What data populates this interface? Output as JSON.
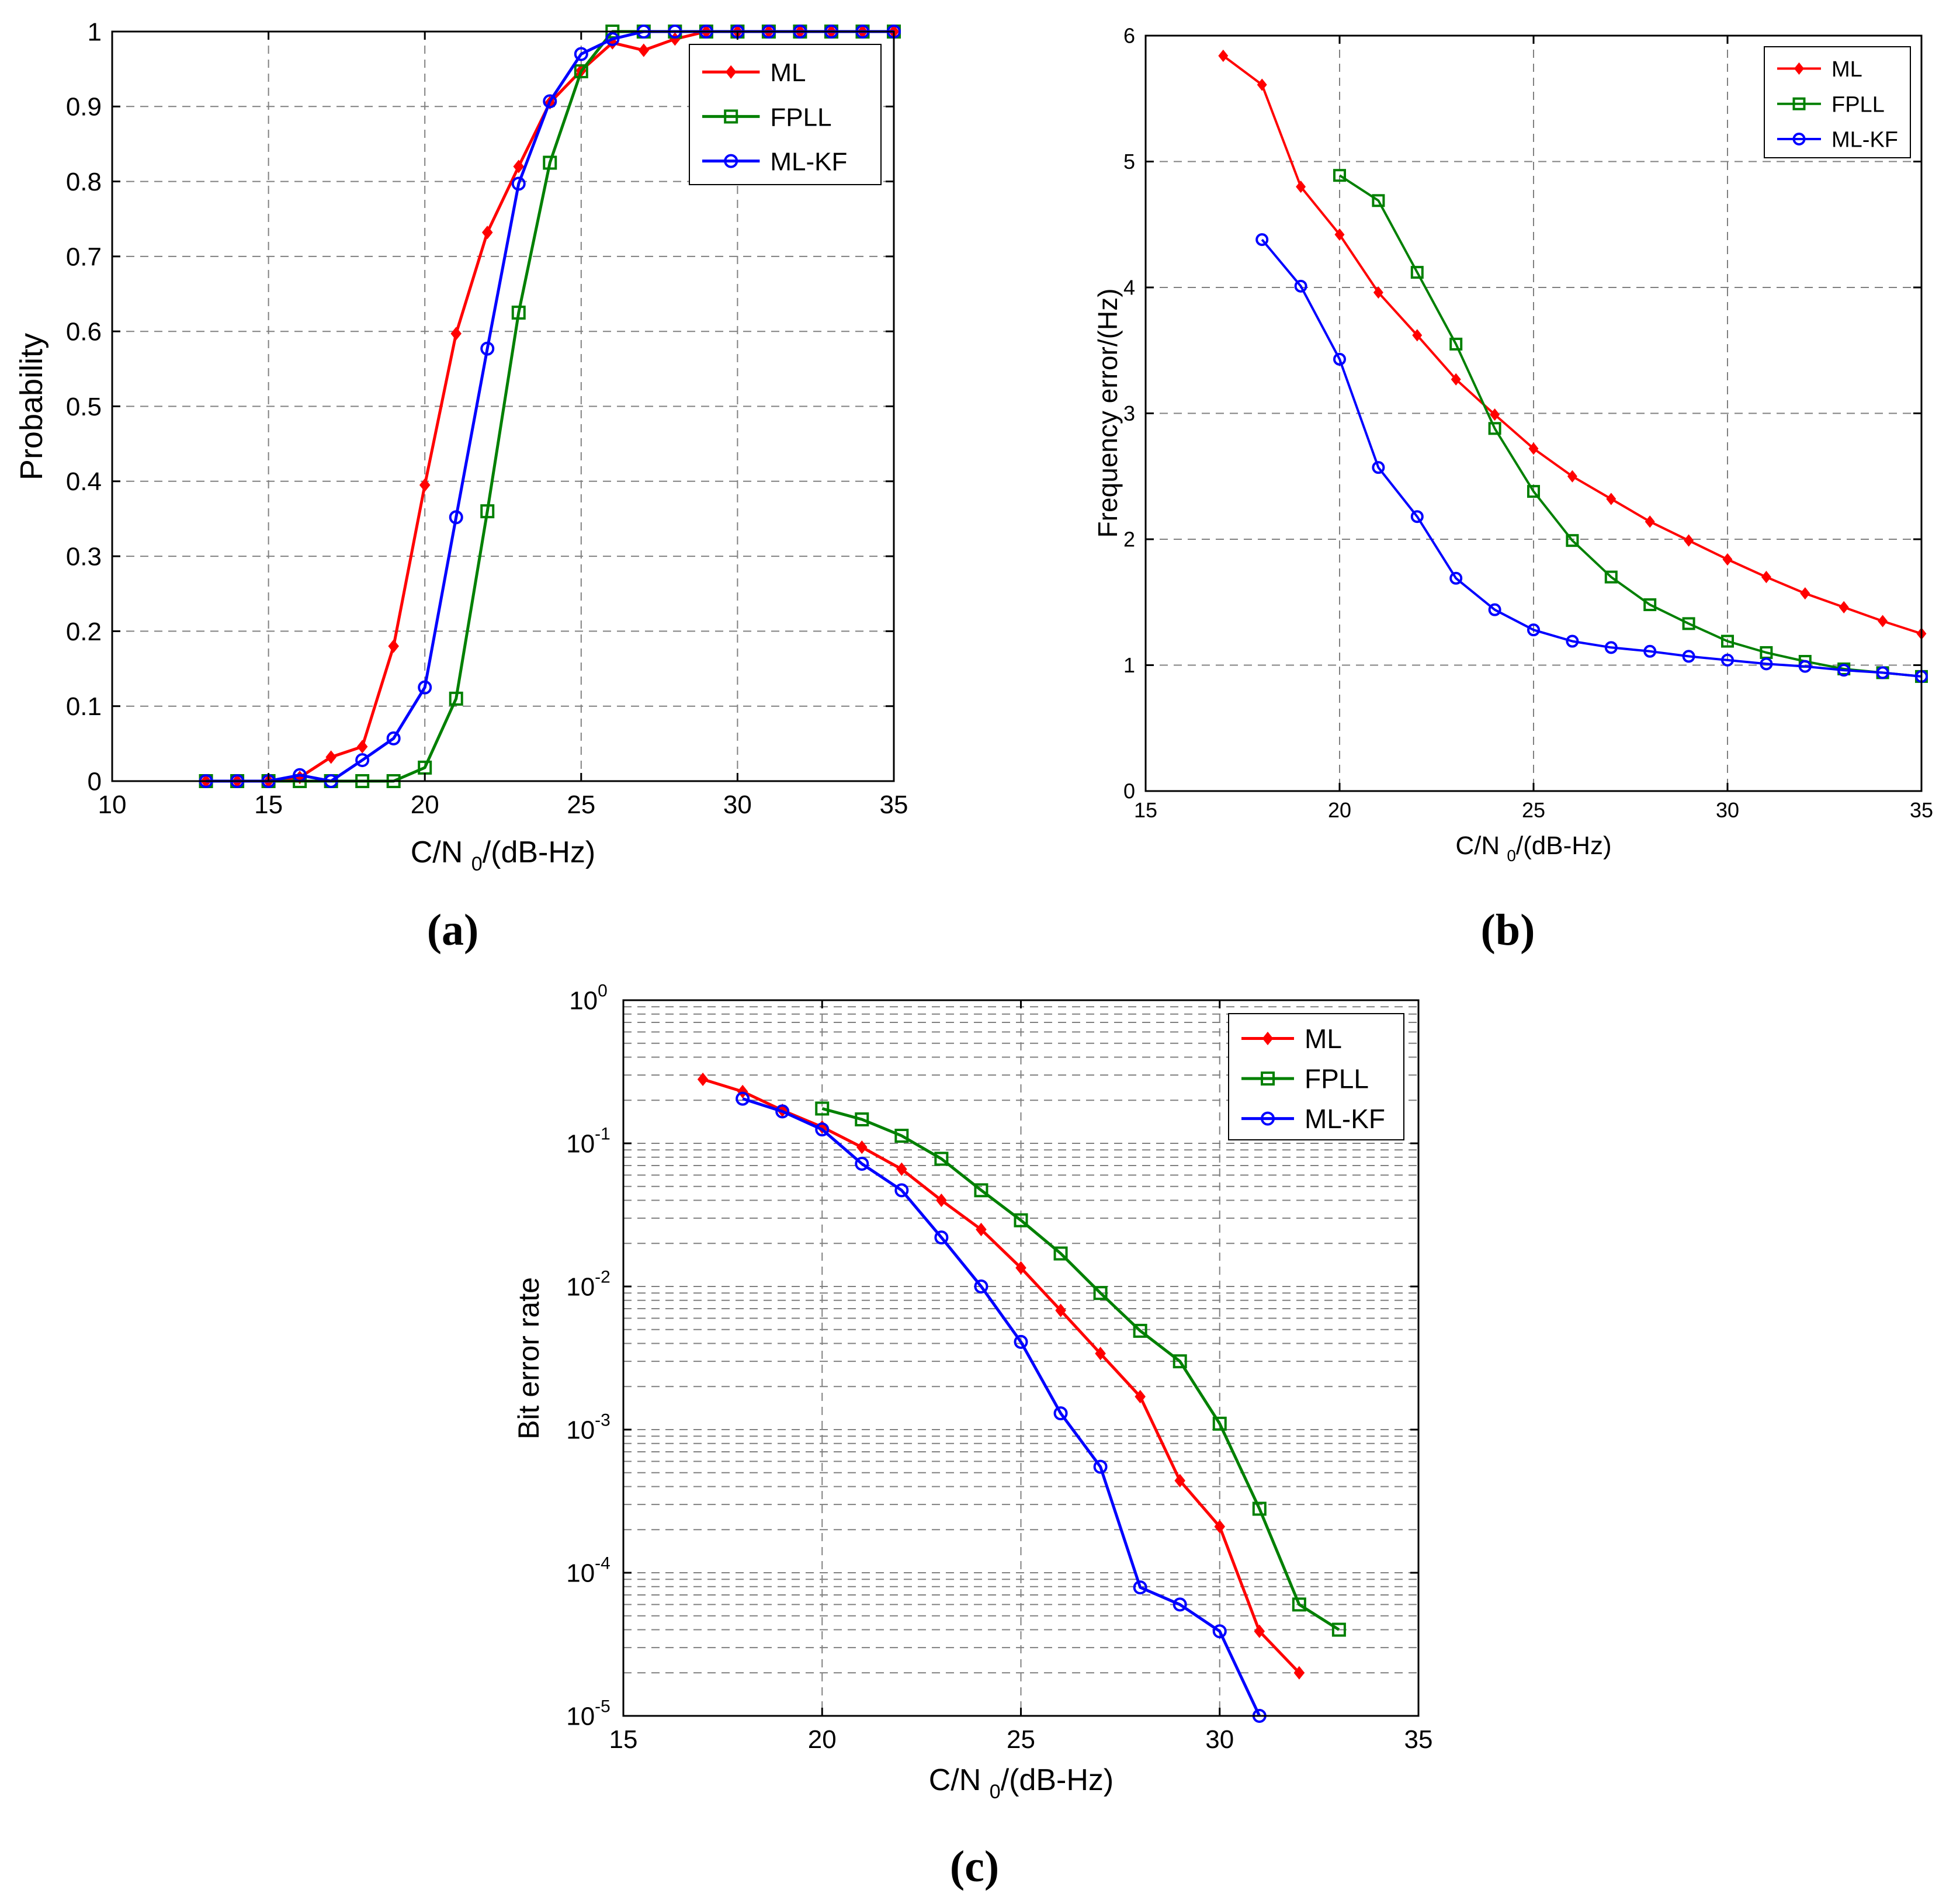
{
  "colors": {
    "ML": "#ff0000",
    "FPLL": "#008000",
    "ML-KF": "#0000ff",
    "grid": "#808080",
    "axis": "#000000"
  },
  "chart_data": [
    {
      "id": "a",
      "caption": "(a)",
      "type": "line",
      "title": "",
      "xlabel": "C/N0/(dB-Hz)",
      "ylabel": "Probability",
      "xlim": [
        10,
        35
      ],
      "ylim": [
        0,
        1
      ],
      "yscale": "linear",
      "grid": true,
      "legend": "top-right",
      "xticks": [
        10,
        15,
        20,
        25,
        30,
        35
      ],
      "yticks": [
        0,
        0.1,
        0.2,
        0.3,
        0.4,
        0.5,
        0.6,
        0.7,
        0.8,
        0.9,
        1
      ],
      "ytick_labels": [
        "0",
        "0.1",
        "0.2",
        "0.3",
        "0.4",
        "0.5",
        "0.6",
        "0.7",
        "0.8",
        "0.9",
        "1"
      ],
      "series": [
        {
          "name": "ML",
          "marker": "diamond",
          "x": [
            13,
            14,
            15,
            16,
            17,
            18,
            19,
            20,
            21,
            22,
            23,
            24,
            25,
            26,
            27,
            28,
            29,
            30,
            31,
            32,
            33,
            34,
            35
          ],
          "values": [
            0,
            0,
            0,
            0.005,
            0.032,
            0.046,
            0.18,
            0.395,
            0.597,
            0.732,
            0.82,
            0.905,
            0.948,
            0.985,
            0.975,
            0.99,
            1,
            1,
            1,
            1,
            1,
            1,
            1
          ]
        },
        {
          "name": "FPLL",
          "marker": "square",
          "x": [
            13,
            14,
            15,
            16,
            17,
            18,
            19,
            20,
            21,
            22,
            23,
            24,
            25,
            26,
            27,
            28,
            29,
            30,
            31,
            32,
            33,
            34,
            35
          ],
          "values": [
            0,
            0,
            0,
            0,
            0,
            0,
            0,
            0.018,
            0.11,
            0.36,
            0.625,
            0.825,
            0.947,
            1,
            1,
            1,
            1,
            1,
            1,
            1,
            1,
            1,
            1
          ]
        },
        {
          "name": "ML-KF",
          "marker": "circle",
          "x": [
            13,
            14,
            15,
            16,
            17,
            18,
            19,
            20,
            21,
            22,
            23,
            24,
            25,
            26,
            27,
            28,
            29,
            30,
            31,
            32,
            33,
            34,
            35
          ],
          "values": [
            0,
            0,
            0,
            0.008,
            0,
            0.028,
            0.057,
            0.125,
            0.352,
            0.577,
            0.797,
            0.907,
            0.97,
            0.99,
            1,
            1,
            1,
            1,
            1,
            1,
            1,
            1,
            1
          ]
        }
      ]
    },
    {
      "id": "b",
      "caption": "(b)",
      "type": "line",
      "title": "",
      "xlabel": "C/N0/(dB-Hz)",
      "ylabel": "Frequency error/(Hz)",
      "xlim": [
        15,
        35
      ],
      "ylim": [
        0,
        6
      ],
      "yscale": "linear",
      "grid": true,
      "legend": "top-right",
      "xticks": [
        15,
        20,
        25,
        30,
        35
      ],
      "yticks": [
        0,
        1,
        2,
        3,
        4,
        5,
        6
      ],
      "ytick_labels": [
        "0",
        "1",
        "2",
        "3",
        "4",
        "5",
        "6"
      ],
      "series": [
        {
          "name": "ML",
          "marker": "diamond",
          "x": [
            17,
            18,
            19,
            20,
            21,
            22,
            23,
            24,
            25,
            26,
            27,
            28,
            29,
            30,
            31,
            32,
            33,
            34,
            35
          ],
          "values": [
            5.84,
            5.61,
            4.8,
            4.42,
            3.96,
            3.62,
            3.27,
            2.99,
            2.72,
            2.5,
            2.32,
            2.14,
            1.99,
            1.84,
            1.7,
            1.57,
            1.46,
            1.35,
            1.25
          ]
        },
        {
          "name": "FPLL",
          "marker": "square",
          "x": [
            20,
            21,
            22,
            23,
            24,
            25,
            26,
            27,
            28,
            29,
            30,
            31,
            32,
            33,
            34,
            35
          ],
          "values": [
            4.89,
            4.69,
            4.12,
            3.55,
            2.88,
            2.38,
            1.99,
            1.7,
            1.48,
            1.33,
            1.19,
            1.1,
            1.03,
            0.97,
            0.94,
            0.91
          ]
        },
        {
          "name": "ML-KF",
          "marker": "circle",
          "x": [
            18,
            19,
            20,
            21,
            22,
            23,
            24,
            25,
            26,
            27,
            28,
            29,
            30,
            31,
            32,
            33,
            34,
            35
          ],
          "values": [
            4.38,
            4.01,
            3.43,
            2.57,
            2.18,
            1.69,
            1.44,
            1.28,
            1.19,
            1.14,
            1.11,
            1.07,
            1.04,
            1.01,
            0.99,
            0.96,
            0.94,
            0.91
          ]
        }
      ]
    },
    {
      "id": "c",
      "caption": "(c)",
      "type": "line",
      "title": "",
      "xlabel": "C/N0/(dB-Hz)",
      "ylabel": "Bit error rate",
      "xlim": [
        15,
        35
      ],
      "ylim": [
        1e-05,
        1
      ],
      "yscale": "log",
      "grid": true,
      "legend": "top-right",
      "xticks": [
        15,
        20,
        25,
        30,
        35
      ],
      "yticks": [
        1e-05,
        0.0001,
        0.001,
        0.01,
        0.1,
        1
      ],
      "ytick_labels": [
        [
          "10",
          "-5"
        ],
        [
          "10",
          "-4"
        ],
        [
          "10",
          "-3"
        ],
        [
          "10",
          "-2"
        ],
        [
          "10",
          "-1"
        ],
        [
          "10",
          "0"
        ]
      ],
      "series": [
        {
          "name": "ML",
          "marker": "diamond",
          "x": [
            17,
            18,
            19,
            20,
            21,
            22,
            23,
            24,
            25,
            26,
            27,
            28,
            29,
            30,
            31,
            32
          ],
          "values": [
            0.28,
            0.23,
            0.17,
            0.13,
            0.094,
            0.066,
            0.04,
            0.025,
            0.0135,
            0.0068,
            0.0034,
            0.0017,
            0.00044,
            0.00021,
            3.9e-05,
            2e-05
          ]
        },
        {
          "name": "FPLL",
          "marker": "square",
          "x": [
            20,
            21,
            22,
            23,
            24,
            25,
            26,
            27,
            28,
            29,
            30,
            31,
            32,
            33
          ],
          "values": [
            0.175,
            0.147,
            0.113,
            0.078,
            0.047,
            0.029,
            0.017,
            0.009,
            0.0049,
            0.003,
            0.0011,
            0.00028,
            6e-05,
            4e-05
          ]
        },
        {
          "name": "ML-KF",
          "marker": "circle",
          "x": [
            18,
            19,
            20,
            21,
            22,
            23,
            24,
            25,
            26,
            27,
            28,
            29,
            30,
            31
          ],
          "values": [
            0.205,
            0.167,
            0.125,
            0.072,
            0.047,
            0.022,
            0.01,
            0.0041,
            0.0013,
            0.00055,
            7.9e-05,
            6e-05,
            3.9e-05,
            1e-05
          ]
        }
      ]
    }
  ]
}
